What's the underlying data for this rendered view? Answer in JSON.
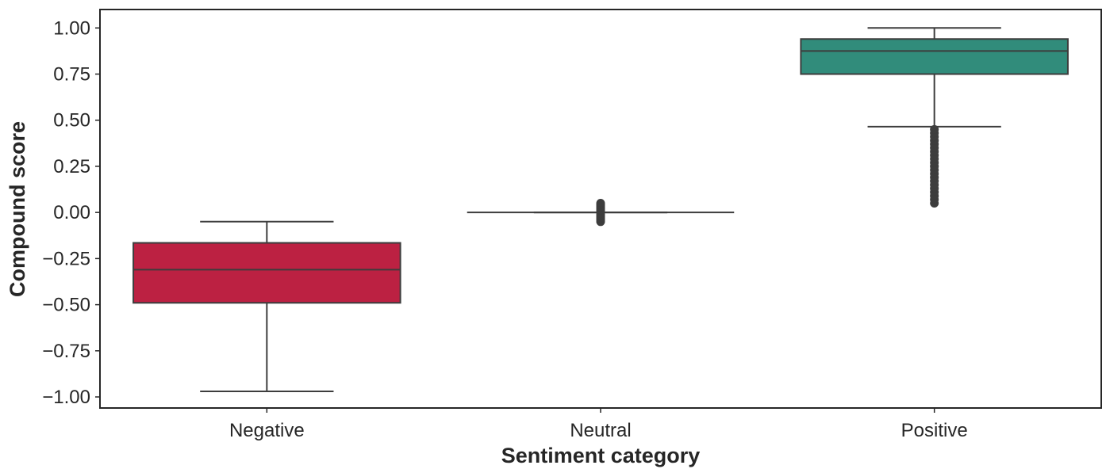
{
  "chart_data": {
    "type": "box",
    "title": "",
    "xlabel": "Sentiment category",
    "ylabel": "Compound score",
    "ylim": [
      -1.06,
      1.1
    ],
    "yticks": [
      -1.0,
      -0.75,
      -0.5,
      -0.25,
      0.0,
      0.25,
      0.5,
      0.75,
      1.0
    ],
    "ytick_labels": [
      "−1.00",
      "−0.75",
      "−0.50",
      "−0.25",
      "0.00",
      "0.25",
      "0.50",
      "0.75",
      "1.00"
    ],
    "categories": [
      "Negative",
      "Neutral",
      "Positive"
    ],
    "grid": false,
    "legend": "none",
    "boxes": [
      {
        "category": "Negative",
        "whisker_low": -0.97,
        "q1": -0.49,
        "median": -0.31,
        "q3": -0.165,
        "whisker_high": -0.05,
        "color": "#bc2142",
        "outliers": []
      },
      {
        "category": "Neutral",
        "whisker_low": 0.0,
        "q1": 0.0,
        "median": 0.0,
        "q3": 0.0,
        "whisker_high": 0.0,
        "color": "#4d4d4d",
        "outliers": [
          -0.05,
          -0.04,
          -0.03,
          -0.02,
          -0.01,
          0.01,
          0.02,
          0.03,
          0.04,
          0.05
        ]
      },
      {
        "category": "Positive",
        "whisker_low": 0.465,
        "q1": 0.75,
        "median": 0.875,
        "q3": 0.94,
        "whisker_high": 1.0,
        "color": "#318c7b",
        "outliers": [
          0.05,
          0.07,
          0.09,
          0.11,
          0.13,
          0.15,
          0.17,
          0.19,
          0.21,
          0.23,
          0.25,
          0.27,
          0.29,
          0.31,
          0.33,
          0.35,
          0.37,
          0.39,
          0.41,
          0.43,
          0.45
        ]
      }
    ]
  }
}
